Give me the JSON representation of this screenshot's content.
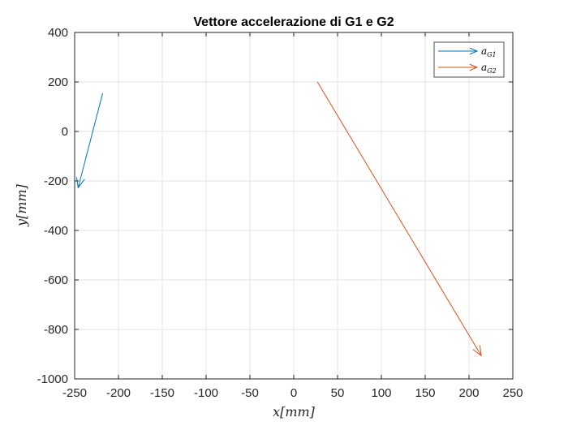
{
  "chart_data": {
    "type": "line",
    "title": "Vettore accelerazione di G1 e G2",
    "xlabel": "x[mm]",
    "ylabel": "y[mm]",
    "xlim": [
      -250,
      250
    ],
    "ylim": [
      -1000,
      400
    ],
    "xticks": [
      -250,
      -200,
      -150,
      -100,
      -50,
      0,
      50,
      100,
      150,
      200,
      250
    ],
    "yticks": [
      -1000,
      -800,
      -600,
      -400,
      -200,
      0,
      200,
      400
    ],
    "grid": true,
    "legend_position": "top-right",
    "series": [
      {
        "name": "a_G1",
        "legend_main": "a",
        "legend_sub": "G1",
        "color": "#0072BD",
        "style": "arrow",
        "start": [
          -218,
          155
        ],
        "end": [
          -246,
          -227
        ]
      },
      {
        "name": "a_G2",
        "legend_main": "a",
        "legend_sub": "G2",
        "color": "#D95319",
        "style": "arrow",
        "start": [
          27,
          200
        ],
        "end": [
          214,
          -906
        ]
      }
    ]
  }
}
